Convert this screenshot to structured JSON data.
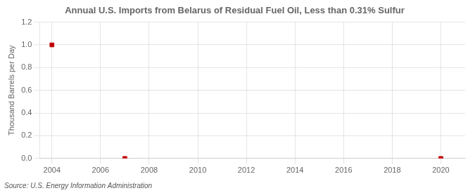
{
  "chart_data": {
    "type": "scatter",
    "title": "Annual U.S. Imports from Belarus of Residual Fuel Oil, Less than 0.31% Sulfur",
    "ylabel": "Thousand Barrels per Day",
    "annotations": [
      "Source: U.S. Energy Information Administration"
    ],
    "x": [
      2004,
      2007,
      2020
    ],
    "values": [
      1.0,
      0.0,
      0.0
    ],
    "color": "#C00000",
    "marker": "square",
    "xlim": [
      2003.5,
      2021
    ],
    "ylim": [
      0.0,
      1.2
    ],
    "xticks": [
      2004,
      2006,
      2008,
      2010,
      2012,
      2014,
      2016,
      2018,
      2020
    ],
    "yticks": [
      {
        "value": 0.0,
        "label": "0.0"
      },
      0.2,
      0.4,
      0.6,
      0.8,
      {
        "value": 1.0,
        "label": "1.0"
      },
      1.2
    ],
    "grid": true
  }
}
